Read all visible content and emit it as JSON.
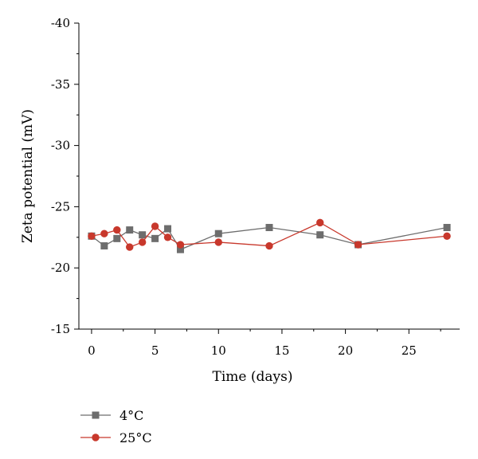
{
  "chart_data": {
    "type": "line",
    "xlabel": "Time (days)",
    "ylabel": "Zeta potential (mV)",
    "xlim": [
      -1,
      29
    ],
    "ylim": [
      -15,
      -40
    ],
    "y_axis_inverted": true,
    "grid": false,
    "legend_position": "bottom-left",
    "x_ticks": [
      0,
      5,
      10,
      15,
      20,
      25
    ],
    "y_ticks": [
      -40,
      -35,
      -30,
      -25,
      -20,
      -15
    ],
    "x_tick_labels": [
      "0",
      "5",
      "10",
      "15",
      "20",
      "25"
    ],
    "y_tick_labels": [
      "-40",
      "-35",
      "-30",
      "-25",
      "-20",
      "-15"
    ],
    "series": [
      {
        "name": "4°C",
        "color": "#6d6d6d",
        "marker": "square",
        "x": [
          0,
          1,
          2,
          3,
          4,
          5,
          6,
          7,
          10,
          14,
          18,
          21,
          28
        ],
        "y": [
          -22.6,
          -21.8,
          -22.4,
          -23.1,
          -22.7,
          -22.4,
          -23.2,
          -21.5,
          -22.8,
          -23.3,
          -22.7,
          -21.9,
          -23.3
        ]
      },
      {
        "name": "25°C",
        "color": "#c8382c",
        "marker": "circle",
        "x": [
          0,
          1,
          2,
          3,
          4,
          5,
          6,
          7,
          10,
          14,
          18,
          21,
          28
        ],
        "y": [
          -22.6,
          -22.8,
          -23.1,
          -21.7,
          -22.1,
          -23.4,
          -22.5,
          -21.9,
          -22.1,
          -21.8,
          -23.7,
          -21.9,
          -22.6
        ]
      }
    ]
  }
}
